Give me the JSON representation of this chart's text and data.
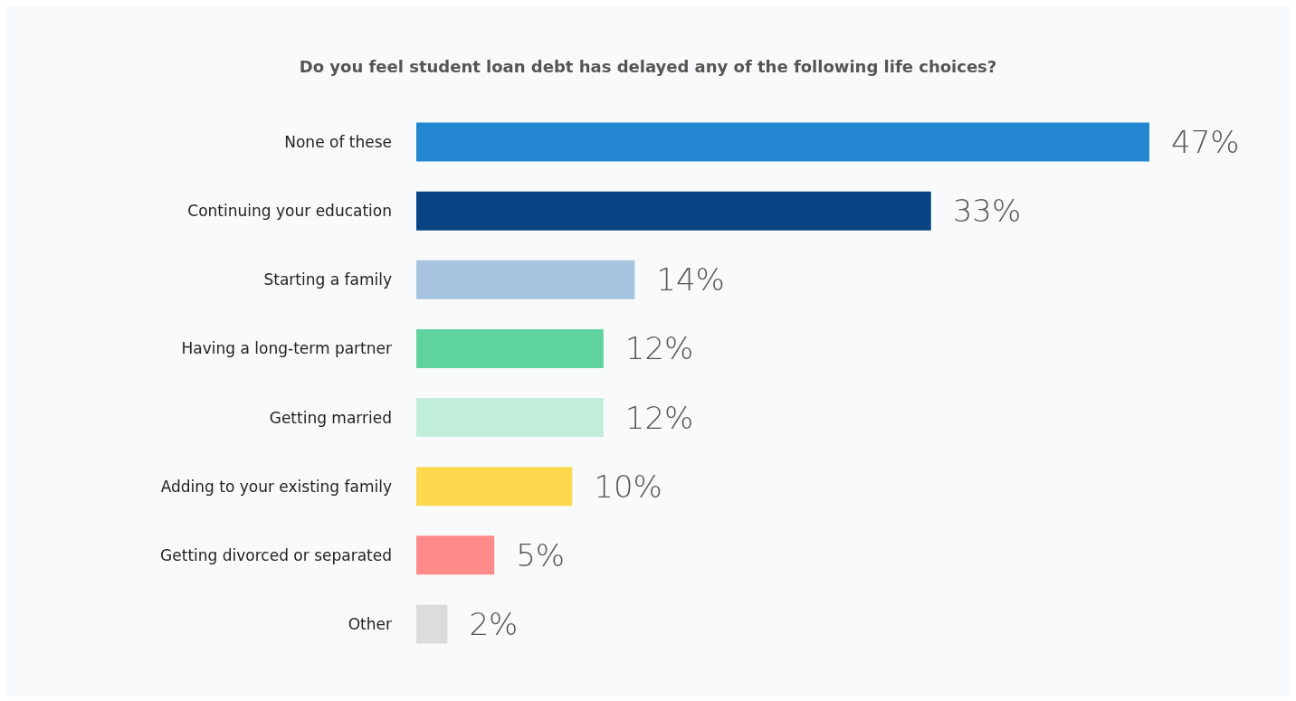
{
  "chart_data": {
    "type": "bar",
    "orientation": "horizontal",
    "title": "Do you feel student loan debt has delayed any of the following life choices?",
    "categories": [
      "None of these",
      "Continuing your education",
      "Starting a family",
      "Having a long-term partner",
      "Getting married",
      "Adding to your existing family",
      "Getting divorced or separated",
      "Other"
    ],
    "values": [
      47,
      33,
      14,
      12,
      12,
      10,
      5,
      2
    ],
    "colors": [
      "#2287d0",
      "#074382",
      "#a6c4de",
      "#5fd39e",
      "#c0eedb",
      "#fdd84e",
      "#ff8a8a",
      "#dcdcdc"
    ],
    "value_labels": [
      "47%",
      "33%",
      "14%",
      "12%",
      "12%",
      "10%",
      "5%",
      "2%"
    ]
  }
}
